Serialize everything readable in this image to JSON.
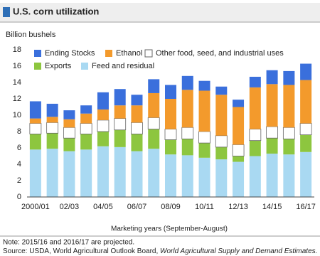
{
  "chart_data": {
    "type": "stacked_bar",
    "title": "U.S. corn utilization",
    "y_label": "Billion bushels",
    "x_label": "Marketing years (September-August)",
    "note": "Note: 2015/16 and 2016/17 are projected.",
    "source": "Source: USDA, World Agricultural Outlook Board, ",
    "source_italic": "World Agricultural Supply and Demand Estimates.",
    "categories": [
      "2000/01",
      null,
      "02/03",
      null,
      "04/05",
      null,
      "06/07",
      null,
      "08/09",
      null,
      "10/11",
      null,
      "12/13",
      null,
      "14/15",
      null,
      "16/17"
    ],
    "series": [
      {
        "name": "Feed and residual",
        "color": "#a9d9f2",
        "values": [
          5.8,
          5.9,
          5.6,
          5.8,
          6.2,
          6.1,
          5.6,
          5.9,
          5.2,
          5.1,
          4.8,
          4.6,
          4.3,
          5.0,
          5.3,
          5.2,
          5.5
        ]
      },
      {
        "name": "Exports",
        "color": "#8dc63f",
        "values": [
          1.9,
          1.9,
          1.6,
          1.9,
          1.8,
          2.1,
          2.1,
          2.4,
          1.8,
          2.0,
          1.8,
          1.5,
          0.7,
          1.9,
          1.9,
          1.9,
          2.1
        ]
      },
      {
        "name": "Other food, seed, and industrial uses",
        "color": "#ffffff",
        "values": [
          1.3,
          1.3,
          1.3,
          1.3,
          1.4,
          1.4,
          1.4,
          1.4,
          1.3,
          1.4,
          1.4,
          1.4,
          1.4,
          1.4,
          1.4,
          1.4,
          1.4
        ]
      },
      {
        "name": "Ethanol",
        "color": "#f39a2c",
        "values": [
          0.6,
          0.7,
          1.0,
          1.2,
          1.3,
          1.6,
          2.1,
          3.0,
          3.7,
          4.6,
          5.0,
          5.0,
          4.6,
          5.1,
          5.2,
          5.2,
          5.3
        ]
      },
      {
        "name": "Ending Stocks",
        "color": "#3a6fdc",
        "values": [
          2.1,
          1.6,
          1.1,
          1.0,
          2.1,
          2.0,
          1.3,
          1.7,
          1.7,
          1.7,
          1.2,
          1.0,
          0.9,
          1.3,
          1.7,
          1.7,
          2.0
        ]
      }
    ],
    "ylim": [
      0,
      18
    ],
    "yticks": [
      0,
      2,
      4,
      6,
      8,
      10,
      12,
      14,
      16,
      18
    ],
    "grid": false
  }
}
